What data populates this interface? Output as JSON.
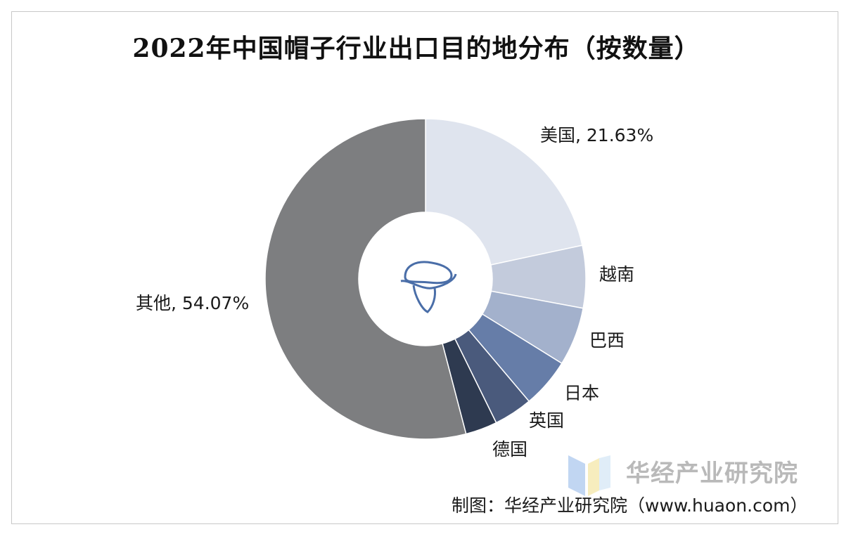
{
  "title": "2022年中国帽子行业出口目的地分布（按数量）",
  "source": "制图：华经产业研究院（www.huaon.com）",
  "watermark": {
    "text": "华经产业研究院",
    "icon": "huaon-logo-icon"
  },
  "center_icon": "hat-icon",
  "chart_data": {
    "type": "pie",
    "style": "donut",
    "title": "2022年中国帽子行业出口目的地分布（按数量）",
    "slices": [
      {
        "name": "美国",
        "value": 21.63,
        "label": "美国, 21.63%",
        "color": "#dfe4ee"
      },
      {
        "name": "越南",
        "value": 6.3,
        "label": "越南",
        "color": "#c3cbdc"
      },
      {
        "name": "巴西",
        "value": 5.9,
        "label": "巴西",
        "color": "#a3b1cc"
      },
      {
        "name": "日本",
        "value": 5.0,
        "label": "日本",
        "color": "#667da8"
      },
      {
        "name": "英国",
        "value": 3.9,
        "label": "英国",
        "color": "#4a5a7c"
      },
      {
        "name": "德国",
        "value": 3.2,
        "label": "德国",
        "color": "#2e3a50"
      },
      {
        "name": "其他",
        "value": 54.07,
        "label": "其他, 54.07%",
        "color": "#7d7e80"
      }
    ],
    "start_angle": "12 o'clock",
    "direction": "clockwise",
    "legend": "none",
    "labels": "outside"
  }
}
